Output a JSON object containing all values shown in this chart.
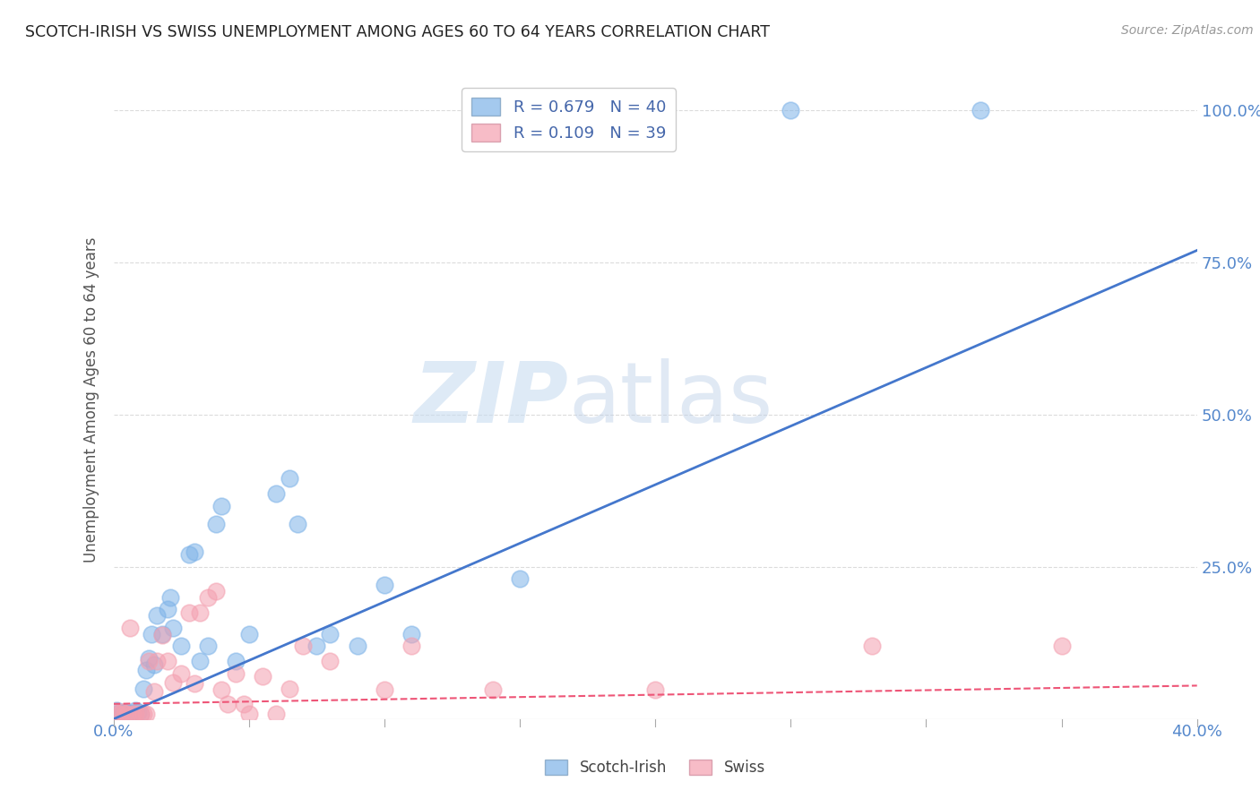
{
  "title": "SCOTCH-IRISH VS SWISS UNEMPLOYMENT AMONG AGES 60 TO 64 YEARS CORRELATION CHART",
  "source": "Source: ZipAtlas.com",
  "ylabel": "Unemployment Among Ages 60 to 64 years",
  "xlim": [
    0.0,
    0.4
  ],
  "ylim": [
    0.0,
    1.05
  ],
  "xticks": [
    0.0,
    0.05,
    0.1,
    0.15,
    0.2,
    0.25,
    0.3,
    0.35,
    0.4
  ],
  "ytick_positions": [
    0.0,
    0.25,
    0.5,
    0.75,
    1.0
  ],
  "ytick_labels": [
    "",
    "25.0%",
    "50.0%",
    "75.0%",
    "100.0%"
  ],
  "scotch_irish_color": "#7EB3E8",
  "swiss_color": "#F4A0B0",
  "scotch_irish_R": 0.679,
  "scotch_irish_N": 40,
  "swiss_R": 0.109,
  "swiss_N": 39,
  "watermark_zip": "ZIP",
  "watermark_atlas": "atlas",
  "background_color": "#FFFFFF",
  "grid_color": "#CCCCCC",
  "title_color": "#222222",
  "axis_label_color": "#5588CC",
  "scotch_irish_scatter": [
    [
      0.001,
      0.015
    ],
    [
      0.002,
      0.01
    ],
    [
      0.003,
      0.008
    ],
    [
      0.004,
      0.012
    ],
    [
      0.005,
      0.01
    ],
    [
      0.006,
      0.008
    ],
    [
      0.007,
      0.01
    ],
    [
      0.008,
      0.015
    ],
    [
      0.009,
      0.012
    ],
    [
      0.01,
      0.008
    ],
    [
      0.011,
      0.05
    ],
    [
      0.012,
      0.08
    ],
    [
      0.013,
      0.1
    ],
    [
      0.014,
      0.14
    ],
    [
      0.015,
      0.09
    ],
    [
      0.016,
      0.17
    ],
    [
      0.018,
      0.14
    ],
    [
      0.02,
      0.18
    ],
    [
      0.021,
      0.2
    ],
    [
      0.022,
      0.15
    ],
    [
      0.025,
      0.12
    ],
    [
      0.028,
      0.27
    ],
    [
      0.03,
      0.275
    ],
    [
      0.032,
      0.095
    ],
    [
      0.035,
      0.12
    ],
    [
      0.038,
      0.32
    ],
    [
      0.04,
      0.35
    ],
    [
      0.045,
      0.095
    ],
    [
      0.05,
      0.14
    ],
    [
      0.06,
      0.37
    ],
    [
      0.065,
      0.395
    ],
    [
      0.068,
      0.32
    ],
    [
      0.075,
      0.12
    ],
    [
      0.08,
      0.14
    ],
    [
      0.09,
      0.12
    ],
    [
      0.1,
      0.22
    ],
    [
      0.11,
      0.14
    ],
    [
      0.15,
      0.23
    ],
    [
      0.25,
      1.0
    ],
    [
      0.32,
      1.0
    ]
  ],
  "swiss_scatter": [
    [
      0.001,
      0.01
    ],
    [
      0.002,
      0.008
    ],
    [
      0.003,
      0.012
    ],
    [
      0.004,
      0.008
    ],
    [
      0.005,
      0.008
    ],
    [
      0.006,
      0.15
    ],
    [
      0.007,
      0.008
    ],
    [
      0.008,
      0.008
    ],
    [
      0.01,
      0.008
    ],
    [
      0.011,
      0.008
    ],
    [
      0.012,
      0.008
    ],
    [
      0.013,
      0.095
    ],
    [
      0.015,
      0.045
    ],
    [
      0.016,
      0.095
    ],
    [
      0.018,
      0.138
    ],
    [
      0.02,
      0.095
    ],
    [
      0.022,
      0.06
    ],
    [
      0.025,
      0.075
    ],
    [
      0.028,
      0.175
    ],
    [
      0.03,
      0.058
    ],
    [
      0.032,
      0.175
    ],
    [
      0.035,
      0.2
    ],
    [
      0.038,
      0.21
    ],
    [
      0.04,
      0.048
    ],
    [
      0.042,
      0.025
    ],
    [
      0.045,
      0.075
    ],
    [
      0.048,
      0.025
    ],
    [
      0.05,
      0.008
    ],
    [
      0.055,
      0.07
    ],
    [
      0.06,
      0.008
    ],
    [
      0.065,
      0.05
    ],
    [
      0.07,
      0.12
    ],
    [
      0.08,
      0.095
    ],
    [
      0.1,
      0.048
    ],
    [
      0.11,
      0.12
    ],
    [
      0.14,
      0.048
    ],
    [
      0.2,
      0.048
    ],
    [
      0.28,
      0.12
    ],
    [
      0.35,
      0.12
    ]
  ],
  "scotch_irish_line": {
    "x0": 0.0,
    "y0": 0.0,
    "x1": 0.4,
    "y1": 0.77
  },
  "swiss_line": {
    "x0": 0.0,
    "y0": 0.025,
    "x1": 0.4,
    "y1": 0.055
  }
}
